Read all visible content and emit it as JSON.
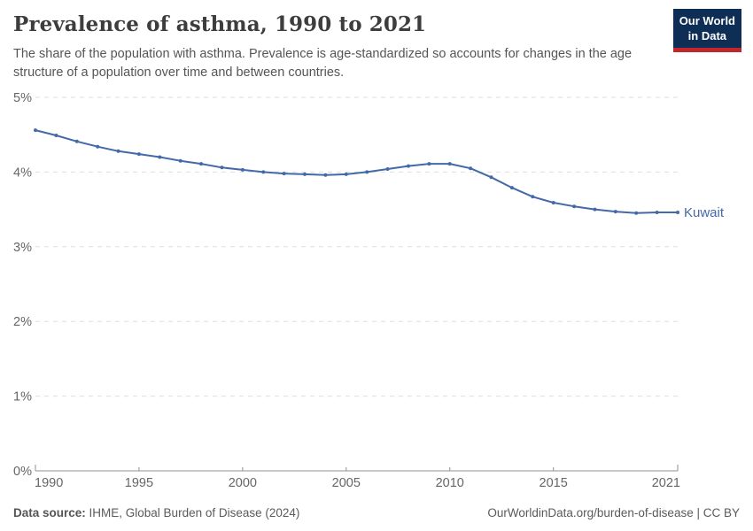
{
  "header": {
    "title": "Prevalence of asthma, 1990 to 2021",
    "subtitle": "The share of the population with asthma. Prevalence is age-standardized so accounts for changes in the age structure of a population over time and between countries.",
    "logo": {
      "line1": "Our World",
      "line2": "in Data",
      "bg_color": "#0f2e55",
      "accent_color": "#c0272d"
    }
  },
  "chart_data": {
    "type": "line",
    "title": "Prevalence of asthma, 1990 to 2021",
    "x": [
      1990,
      1991,
      1992,
      1993,
      1994,
      1995,
      1996,
      1997,
      1998,
      1999,
      2000,
      2001,
      2002,
      2003,
      2004,
      2005,
      2006,
      2007,
      2008,
      2009,
      2010,
      2011,
      2012,
      2013,
      2014,
      2015,
      2016,
      2017,
      2018,
      2019,
      2020,
      2021
    ],
    "series": [
      {
        "name": "Kuwait",
        "color": "#4469a8",
        "values": [
          4.56,
          4.49,
          4.41,
          4.34,
          4.28,
          4.24,
          4.2,
          4.15,
          4.11,
          4.06,
          4.03,
          4.0,
          3.98,
          3.97,
          3.96,
          3.97,
          4.0,
          4.04,
          4.08,
          4.11,
          4.11,
          4.05,
          3.93,
          3.79,
          3.67,
          3.59,
          3.54,
          3.5,
          3.47,
          3.45,
          3.46,
          3.46
        ]
      }
    ],
    "xlabel": "",
    "ylabel": "",
    "ylim": [
      0,
      5
    ],
    "y_ticks": [
      0,
      1,
      2,
      3,
      4,
      5
    ],
    "y_tick_suffix": "%",
    "x_ticks": [
      1990,
      1995,
      2000,
      2005,
      2010,
      2015,
      2021
    ],
    "grid": "horizontal-dashed",
    "legend_position": "end-of-line-label",
    "end_label": "Kuwait",
    "axis_color": "#8f8f8f",
    "grid_color": "#dddddd",
    "tick_label_color": "#666666"
  },
  "footer": {
    "datasource_label": "Data source:",
    "datasource_value": " IHME, Global Burden of Disease (2024)",
    "credit_url": "OurWorldinData.org/burden-of-disease",
    "credit_separator": " | ",
    "credit_license": "CC BY"
  }
}
